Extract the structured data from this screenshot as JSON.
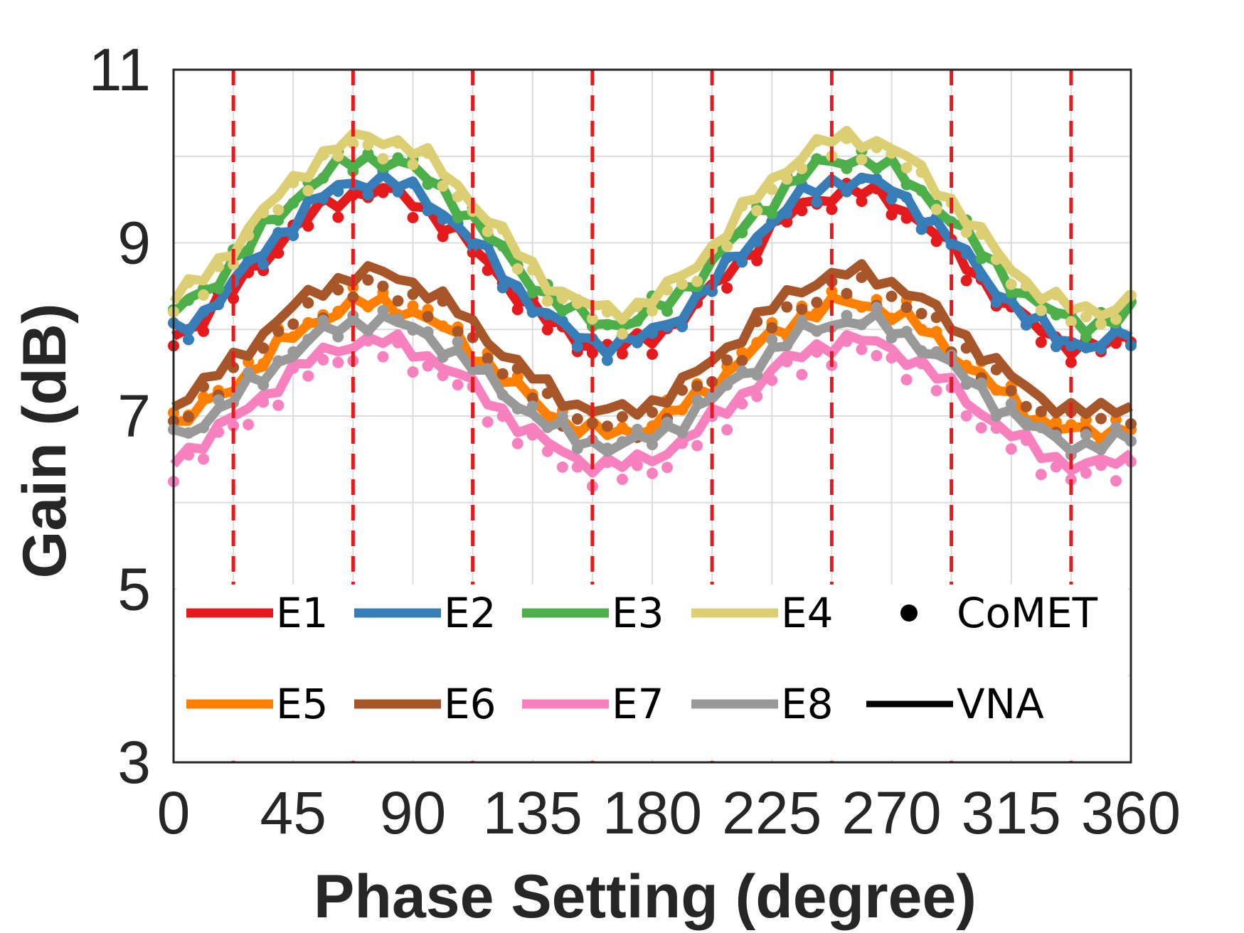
{
  "chart_data": {
    "type": "line",
    "title": "",
    "xlabel": "Phase Setting (degree)",
    "ylabel": "Gain (dB)",
    "xlim": [
      0,
      360
    ],
    "ylim": [
      3,
      11
    ],
    "xticks": [
      "0",
      "45",
      "90",
      "135",
      "180",
      "225",
      "270",
      "315",
      "360"
    ],
    "yticks": [
      "3",
      "5",
      "7",
      "9",
      "11"
    ],
    "grid": true,
    "legend_position": "lower",
    "vertical_markers": [
      22.5,
      67.5,
      112.5,
      157.5,
      202.5,
      247.5,
      292.5,
      337.5
    ],
    "vertical_marker_color": "#e41a1c",
    "curve_model": {
      "x_step": 5.625,
      "description_shape": "offset + amplitude*sin((x - 30) * 2 deg)"
    },
    "series": [
      {
        "name": "E1",
        "color": "#e41a1c",
        "offset": 8.7,
        "amplitude": 0.9,
        "comet_offset": -0.05
      },
      {
        "name": "E2",
        "color": "#377eb8",
        "offset": 8.78,
        "amplitude": 0.95,
        "comet_offset": -0.03
      },
      {
        "name": "E3",
        "color": "#4daf4a",
        "offset": 9.02,
        "amplitude": 0.95,
        "comet_offset": 0.02
      },
      {
        "name": "E4",
        "color": "#dccf73",
        "offset": 9.22,
        "amplitude": 1.0,
        "comet_offset": -0.1
      },
      {
        "name": "E5",
        "color": "#ff7f00",
        "offset": 7.55,
        "amplitude": 0.75,
        "comet_offset": 0.05
      },
      {
        "name": "E6",
        "color": "#a65628",
        "offset": 7.85,
        "amplitude": 0.8,
        "comet_offset": -0.18
      },
      {
        "name": "E7",
        "color": "#f781bf",
        "offset": 7.15,
        "amplitude": 0.72,
        "comet_offset": -0.12
      },
      {
        "name": "E8",
        "color": "#999999",
        "offset": 7.38,
        "amplitude": 0.72,
        "comet_offset": 0.02
      }
    ],
    "legend_extra": [
      {
        "name": "CoMET",
        "marker": "dot"
      },
      {
        "name": "VNA",
        "marker": "line"
      }
    ]
  }
}
